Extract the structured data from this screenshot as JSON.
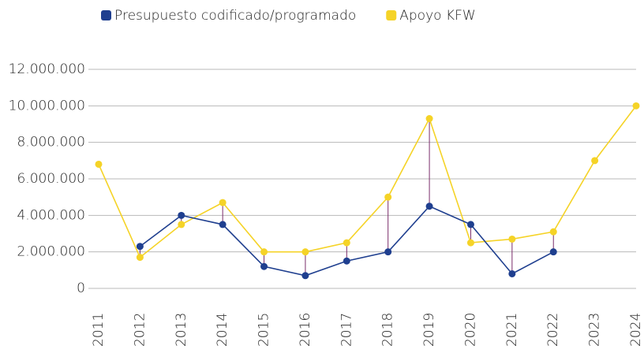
{
  "chart_data": {
    "type": "line",
    "categories": [
      "2011",
      "2012",
      "2013",
      "2014",
      "2015",
      "2016",
      "2017",
      "2018",
      "2019",
      "2020",
      "2021",
      "2022",
      "2023",
      "2024"
    ],
    "series": [
      {
        "name": "Presupuesto codificado/programado",
        "color": "#1f3f8f",
        "values": [
          null,
          2300000,
          4000000,
          3500000,
          1200000,
          700000,
          1500000,
          2000000,
          4500000,
          3500000,
          800000,
          2000000,
          null,
          null
        ]
      },
      {
        "name": "Apoyo KFW",
        "color": "#f5d327",
        "values": [
          6800000,
          1700000,
          3500000,
          4700000,
          2000000,
          2000000,
          2500000,
          5000000,
          9300000,
          2500000,
          2700000,
          3100000,
          7000000,
          10000000
        ]
      }
    ],
    "ylim": [
      0,
      12000000
    ],
    "yticks": [
      0,
      {
        "value": 2000000,
        "label": "2.000.000"
      },
      {
        "value": 4000000,
        "label": "4.000.000"
      },
      {
        "value": 6000000,
        "label": "6.000.000"
      },
      {
        "value": 8000000,
        "label": "8.000.000"
      },
      {
        "value": 10000000,
        "label": "10.000.000"
      },
      {
        "value": 12000000,
        "label": "12.000.000"
      }
    ],
    "grid": true,
    "legend": "top",
    "drop_lines_color": "#7b2d6b"
  }
}
